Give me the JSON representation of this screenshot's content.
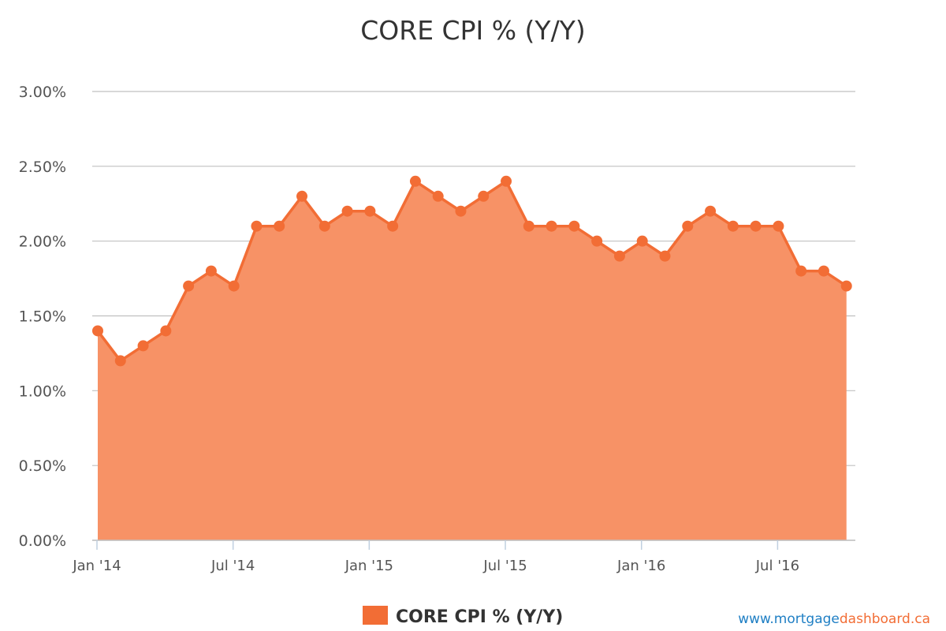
{
  "chart_data": {
    "type": "area",
    "title": "CORE CPI % (Y/Y)",
    "xlabel": "",
    "ylabel": "",
    "ylim": [
      0,
      3
    ],
    "y_ticks": [
      "0.00%",
      "0.50%",
      "1.00%",
      "1.50%",
      "2.00%",
      "2.50%",
      "3.00%"
    ],
    "x_ticks": [
      {
        "label": "Jan '14",
        "index": 0
      },
      {
        "label": "Jul '14",
        "index": 6
      },
      {
        "label": "Jan '15",
        "index": 12
      },
      {
        "label": "Jul '15",
        "index": 18
      },
      {
        "label": "Jan '16",
        "index": 24
      },
      {
        "label": "Jul '16",
        "index": 30
      }
    ],
    "x": [
      "2014-01",
      "2014-02",
      "2014-03",
      "2014-04",
      "2014-05",
      "2014-06",
      "2014-07",
      "2014-08",
      "2014-09",
      "2014-10",
      "2014-11",
      "2014-12",
      "2015-01",
      "2015-02",
      "2015-03",
      "2015-04",
      "2015-05",
      "2015-06",
      "2015-07",
      "2015-08",
      "2015-09",
      "2015-10",
      "2015-11",
      "2015-12",
      "2016-01",
      "2016-02",
      "2016-03",
      "2016-04",
      "2016-05",
      "2016-06",
      "2016-07",
      "2016-08",
      "2016-09",
      "2016-10"
    ],
    "series": [
      {
        "name": "CORE CPI % (Y/Y)",
        "values": [
          1.4,
          1.2,
          1.3,
          1.4,
          1.7,
          1.8,
          1.7,
          2.1,
          2.1,
          2.3,
          2.1,
          2.2,
          2.2,
          2.1,
          2.4,
          2.3,
          2.2,
          2.3,
          2.4,
          2.1,
          2.1,
          2.1,
          2.0,
          1.9,
          2.0,
          1.9,
          2.1,
          2.2,
          2.1,
          2.1,
          2.1,
          1.8,
          1.8,
          1.7
        ]
      }
    ],
    "grid": true,
    "legend": "bottom-center"
  },
  "colors": {
    "line": "#f26d35",
    "area": "#f79266",
    "grid": "#c0c0c0",
    "credit_blue": "#1f7fc4",
    "credit_orange": "#f26d35"
  },
  "legend": {
    "label": "CORE CPI % (Y/Y)"
  },
  "credit": {
    "prefix": "www.mortgage",
    "suffix": "dashboard.ca"
  }
}
